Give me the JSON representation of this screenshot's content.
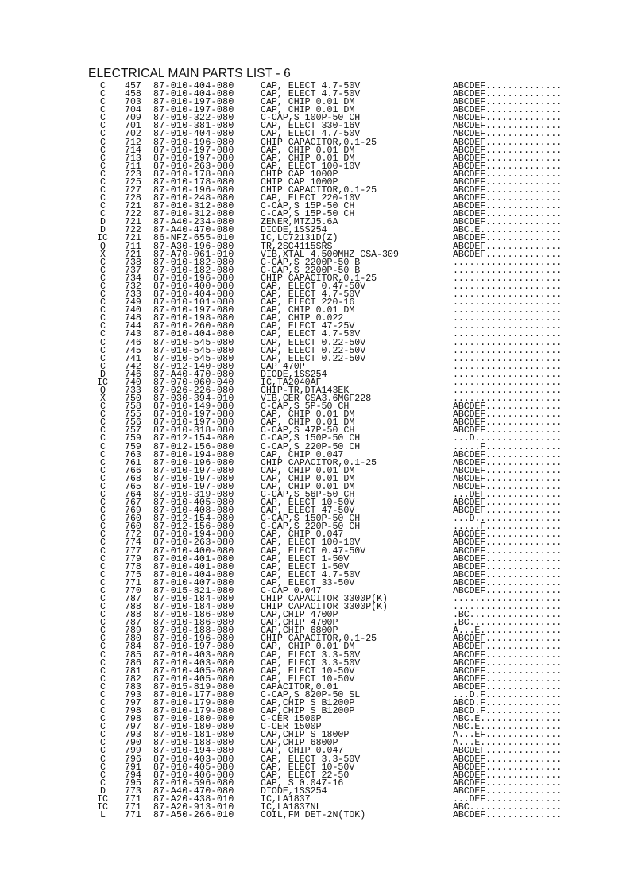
{
  "title": "ELECTRICAL MAIN PARTS LIST - 6",
  "rows": [
    [
      "C",
      "457",
      "87-010-404-080",
      "CAP, ELECT 4.7-50V",
      "ABCDEF.............."
    ],
    [
      "C",
      "458",
      "87-010-404-080",
      "CAP, ELECT 4.7-50V",
      "ABCDEF.............."
    ],
    [
      "C",
      "703",
      "87-010-197-080",
      "CAP, CHIP 0.01 DM",
      "ABCDEF.............."
    ],
    [
      "C",
      "704",
      "87-010-197-080",
      "CAP, CHIP 0.01 DM",
      "ABCDEF.............."
    ],
    [
      "C",
      "709",
      "87-010-322-080",
      "C-CAP,S 100P-50 CH",
      "ABCDEF.............."
    ],
    [
      "C",
      "701",
      "87-010-381-080",
      "CAP, ELECT 330-16V",
      "ABCDEF.............."
    ],
    [
      "C",
      "702",
      "87-010-404-080",
      "CAP, ELECT 4.7-50V",
      "ABCDEF.............."
    ],
    [
      "C",
      "712",
      "87-010-196-080",
      "CHIP CAPACITOR,0.1-25",
      "ABCDEF.............."
    ],
    [
      "C",
      "714",
      "87-010-197-080",
      "CAP, CHIP 0.01 DM",
      "ABCDEF.............."
    ],
    [
      "C",
      "713",
      "87-010-197-080",
      "CAP, CHIP 0.01 DM",
      "ABCDEF.............."
    ],
    [
      "C",
      "711",
      "87-010-263-080",
      "CAP, ELECT 100-10V",
      "ABCDEF.............."
    ],
    [
      "C",
      "723",
      "87-010-178-080",
      "CHIP CAP 1000P",
      "ABCDEF.............."
    ],
    [
      "C",
      "725",
      "87-010-178-080",
      "CHIP CAP 1000P",
      "ABCDEF.............."
    ],
    [
      "C",
      "727",
      "87-010-196-080",
      "CHIP CAPACITOR,0.1-25",
      "ABCDEF.............."
    ],
    [
      "C",
      "728",
      "87-010-248-080",
      "CAP, ELECT 220-10V",
      "ABCDEF.............."
    ],
    [
      "C",
      "721",
      "87-010-312-080",
      "C-CAP,S 15P-50 CH",
      "ABCDEF.............."
    ],
    [
      "C",
      "722",
      "87-010-312-080",
      "C-CAP,S 15P-50 CH",
      "ABCDEF.............."
    ],
    [
      "D",
      "721",
      "87-A40-234-080",
      "ZENER,MTZJ5.6A",
      "ABCDEF.............."
    ],
    [
      "D",
      "722",
      "87-A40-470-080",
      "DIODE,1SS254",
      "ABC.E..............."
    ],
    [
      "IC",
      "721",
      "86-NFZ-655-010",
      "IC,LC72131D(Z)",
      "ABCDEF.............."
    ],
    [
      "Q",
      "711",
      "87-A30-196-080",
      "TR,2SC4115SRS",
      "ABCDEF.............."
    ],
    [
      "X",
      "721",
      "87-A70-061-010",
      "VIB,XTAL 4.500MHZ CSA-309",
      "ABCDEF.............."
    ],
    [
      "C",
      "738",
      "87-010-182-080",
      "C-CAP,S 2200P-50 B",
      "...................."
    ],
    [
      "C",
      "737",
      "87-010-182-080",
      "C-CAP,S 2200P-50 B",
      "...................."
    ],
    [
      "C",
      "734",
      "87-010-196-080",
      "CHIP CAPACITOR,0.1-25",
      "...................."
    ],
    [
      "C",
      "732",
      "87-010-400-080",
      "CAP, ELECT 0.47-50V",
      "...................."
    ],
    [
      "C",
      "733",
      "87-010-404-080",
      "CAP, ELECT 4.7-50V",
      "...................."
    ],
    [
      "C",
      "749",
      "87-010-101-080",
      "CAP, ELECT 220-16",
      "...................."
    ],
    [
      "C",
      "740",
      "87-010-197-080",
      "CAP, CHIP 0.01 DM",
      "...................."
    ],
    [
      "C",
      "748",
      "87-010-198-080",
      "CAP, CHIP 0.022",
      "...................."
    ],
    [
      "C",
      "744",
      "87-010-260-080",
      "CAP, ELECT 47-25V",
      "...................."
    ],
    [
      "C",
      "743",
      "87-010-404-080",
      "CAP, ELECT 4.7-50V",
      "...................."
    ],
    [
      "C",
      "746",
      "87-010-545-080",
      "CAP, ELECT 0.22-50V",
      "...................."
    ],
    [
      "C",
      "745",
      "87-010-545-080",
      "CAP, ELECT 0.22-50V",
      "...................."
    ],
    [
      "C",
      "741",
      "87-010-545-080",
      "CAP, ELECT 0.22-50V",
      "...................."
    ],
    [
      "C",
      "742",
      "87-012-140-080",
      "CAP 470P",
      "...................."
    ],
    [
      "D",
      "746",
      "87-A40-470-080",
      "DIODE,1SS254",
      "...................."
    ],
    [
      "IC",
      "740",
      "87-070-060-040",
      "IC,TA2040AF",
      "...................."
    ],
    [
      "Q",
      "733",
      "87-026-226-080",
      "CHIP-TR,DTA143EK",
      "...................."
    ],
    [
      "X",
      "750",
      "87-030-394-010",
      "VIB,CER CSA3.6MGF228",
      "...................."
    ],
    [
      "C",
      "758",
      "87-010-149-080",
      "C-CAP,S 5P-50 CH",
      "ABCDEF.............."
    ],
    [
      "C",
      "755",
      "87-010-197-080",
      "CAP, CHIP 0.01 DM",
      "ABCDEF.............."
    ],
    [
      "C",
      "756",
      "87-010-197-080",
      "CAP, CHIP 0.01 DM",
      "ABCDEF.............."
    ],
    [
      "C",
      "757",
      "87-010-318-080",
      "C-CAP,S 47P-50 CH",
      "ABCDEF.............."
    ],
    [
      "C",
      "759",
      "87-012-154-080",
      "C-CAP,S 150P-50 CH",
      "...D................"
    ],
    [
      "C",
      "759",
      "87-012-156-080",
      "C-CAP,S 220P-50 CH",
      ".....F.............."
    ],
    [
      "C",
      "763",
      "87-010-194-080",
      "CAP, CHIP 0.047",
      "ABCDEF.............."
    ],
    [
      "C",
      "761",
      "87-010-196-080",
      "CHIP CAPACITOR,0.1-25",
      "ABCDEF.............."
    ],
    [
      "C",
      "766",
      "87-010-197-080",
      "CAP, CHIP 0.01 DM",
      "ABCDEF.............."
    ],
    [
      "C",
      "768",
      "87-010-197-080",
      "CAP, CHIP 0.01 DM",
      "ABCDEF.............."
    ],
    [
      "C",
      "765",
      "87-010-197-080",
      "CAP, CHIP 0.01 DM",
      "ABCDEF.............."
    ],
    [
      "C",
      "764",
      "87-010-319-080",
      "C-CAP,S 56P-50 CH",
      "...DEF.............."
    ],
    [
      "C",
      "767",
      "87-010-405-080",
      "CAP, ELECT 10-50V",
      "ABCDEF.............."
    ],
    [
      "C",
      "769",
      "87-010-408-080",
      "CAP, ELECT 47-50V",
      "ABCDEF.............."
    ],
    [
      "C",
      "760",
      "87-012-154-080",
      "C-CAP,S 150P-50 CH",
      "...D................"
    ],
    [
      "C",
      "760",
      "87-012-156-080",
      "C-CAP,S 220P-50 CH",
      ".....F.............."
    ],
    [
      "C",
      "772",
      "87-010-194-080",
      "CAP, CHIP 0.047",
      "ABCDEF.............."
    ],
    [
      "C",
      "774",
      "87-010-263-080",
      "CAP, ELECT 100-10V",
      "ABCDEF.............."
    ],
    [
      "C",
      "777",
      "87-010-400-080",
      "CAP, ELECT 0.47-50V",
      "ABCDEF.............."
    ],
    [
      "C",
      "779",
      "87-010-401-080",
      "CAP, ELECT 1-50V",
      "ABCDEF.............."
    ],
    [
      "C",
      "778",
      "87-010-401-080",
      "CAP, ELECT 1-50V",
      "ABCDEF.............."
    ],
    [
      "C",
      "775",
      "87-010-404-080",
      "CAP, ELECT 4.7-50V",
      "ABCDEF.............."
    ],
    [
      "C",
      "771",
      "87-010-407-080",
      "CAP, ELECT 33-50V",
      "ABCDEF.............."
    ],
    [
      "C",
      "770",
      "87-015-821-080",
      "C-CAP 0.047",
      "ABCDEF.............."
    ],
    [
      "C",
      "787",
      "87-010-184-080",
      "CHIP CAPACITOR 3300P(K)",
      "...................."
    ],
    [
      "C",
      "788",
      "87-010-184-080",
      "CHIP CAPACITOR 3300P(K)",
      "...................."
    ],
    [
      "C",
      "788",
      "87-010-186-080",
      "CAP,CHIP 4700P",
      ".BC................."
    ],
    [
      "C",
      "787",
      "87-010-186-080",
      "CAP,CHIP 4700P",
      ".BC................."
    ],
    [
      "C",
      "789",
      "87-010-188-080",
      "CAP,CHIP 6800P",
      "A...E..............."
    ],
    [
      "C",
      "780",
      "87-010-196-080",
      "CHIP CAPACITOR,0.1-25",
      "ABCDEF.............."
    ],
    [
      "C",
      "784",
      "87-010-197-080",
      "CAP, CHIP 0.01 DM",
      "ABCDEF.............."
    ],
    [
      "C",
      "785",
      "87-010-403-080",
      "CAP, ELECT 3.3-50V",
      "ABCDEF.............."
    ],
    [
      "C",
      "786",
      "87-010-403-080",
      "CAP, ELECT 3.3-50V",
      "ABCDEF.............."
    ],
    [
      "C",
      "781",
      "87-010-405-080",
      "CAP, ELECT 10-50V",
      "ABCDEF.............."
    ],
    [
      "C",
      "782",
      "87-010-405-080",
      "CAP, ELECT 10-50V",
      "ABCDEF.............."
    ],
    [
      "C",
      "783",
      "87-015-819-080",
      "CAPACITOR,0.01",
      "ABCDEF.............."
    ],
    [
      "C",
      "793",
      "87-010-177-080",
      "C-CAP,S 820P-50 SL",
      "...D.F.............."
    ],
    [
      "C",
      "797",
      "87-010-179-080",
      "CAP,CHIP S B1200P",
      "ABCD.F.............."
    ],
    [
      "C",
      "798",
      "87-010-179-080",
      "CAP,CHIP S B1200P",
      "ABCD.F.............."
    ],
    [
      "C",
      "798",
      "87-010-180-080",
      "C-CER 1500P",
      "ABC.E..............."
    ],
    [
      "C",
      "797",
      "87-010-180-080",
      "C-CER 1500P",
      "ABC.E..............."
    ],
    [
      "C",
      "793",
      "87-010-181-080",
      "CAP,CHIP S 1800P",
      "A...EF.............."
    ],
    [
      "C",
      "790",
      "87-010-188-080",
      "CAP,CHIP 6800P",
      "A...E..............."
    ],
    [
      "C",
      "799",
      "87-010-194-080",
      "CAP, CHIP 0.047",
      "ABCDEF.............."
    ],
    [
      "C",
      "796",
      "87-010-403-080",
      "CAP, ELECT 3.3-50V",
      "ABCDEF.............."
    ],
    [
      "C",
      "791",
      "87-010-405-080",
      "CAP, ELECT 10-50V",
      "ABCDEF.............."
    ],
    [
      "C",
      "794",
      "87-010-406-080",
      "CAP, ELECT 22-50",
      "ABCDEF.............."
    ],
    [
      "C",
      "795",
      "87-010-596-080",
      "CAP, S 0.047-16",
      "ABCDEF.............."
    ],
    [
      "D",
      "773",
      "87-A40-470-080",
      "DIODE,1SS254",
      "ABCDEF.............."
    ],
    [
      "IC",
      "771",
      "87-A20-438-010",
      "IC,LA1837",
      "...DEF.............."
    ],
    [
      "IC",
      "771",
      "87-A20-913-010",
      "IC,LA1837NL",
      "ABC................."
    ],
    [
      "L",
      "771",
      "87-A50-266-010",
      "COIL,FM DET-2N(TOK)",
      "ABCDEF.............."
    ]
  ]
}
